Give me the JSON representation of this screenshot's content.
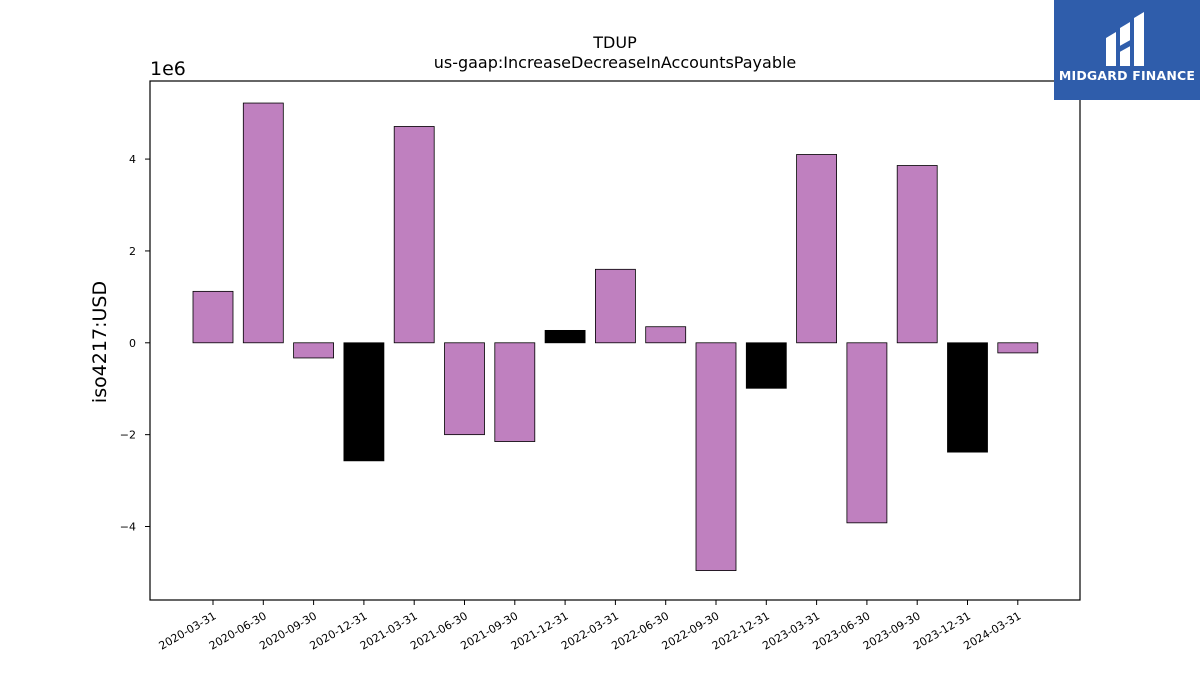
{
  "chart_data": {
    "type": "bar",
    "title": "TDUP",
    "subtitle": "us-gaap:IncreaseDecreaseInAccountsPayable",
    "ylabel": "iso4217:USD",
    "xlabel": "",
    "offset_label": "1e6",
    "ylim": [
      -5.6,
      5.7
    ],
    "yticks": [
      -4,
      -2,
      0,
      2,
      4
    ],
    "ytick_labels": [
      "−4",
      "−2",
      "0",
      "2",
      "4"
    ],
    "categories": [
      "2020-03-31",
      "2020-06-30",
      "2020-09-30",
      "2020-12-31",
      "2021-03-31",
      "2021-06-30",
      "2021-09-30",
      "2021-12-31",
      "2022-03-31",
      "2022-06-30",
      "2022-09-30",
      "2022-12-31",
      "2023-03-31",
      "2023-06-30",
      "2023-09-30",
      "2023-12-31",
      "2024-03-31"
    ],
    "values": [
      1.12,
      5.22,
      -0.33,
      -2.57,
      4.71,
      -2.0,
      -2.15,
      0.27,
      1.6,
      0.35,
      -4.96,
      -0.99,
      4.1,
      -3.92,
      3.86,
      -2.38,
      -0.22
    ],
    "bar_colors": [
      "#bf80bf",
      "#bf80bf",
      "#bf80bf",
      "#000000",
      "#bf80bf",
      "#bf80bf",
      "#bf80bf",
      "#000000",
      "#bf80bf",
      "#bf80bf",
      "#bf80bf",
      "#000000",
      "#bf80bf",
      "#bf80bf",
      "#bf80bf",
      "#000000",
      "#bf80bf"
    ],
    "colors": {
      "primary": "#bf80bf",
      "year_end": "#000000"
    },
    "grid": false,
    "legend": "none"
  },
  "logo": {
    "text": "MIDGARD FINANCE",
    "background": "#2f5dab"
  }
}
